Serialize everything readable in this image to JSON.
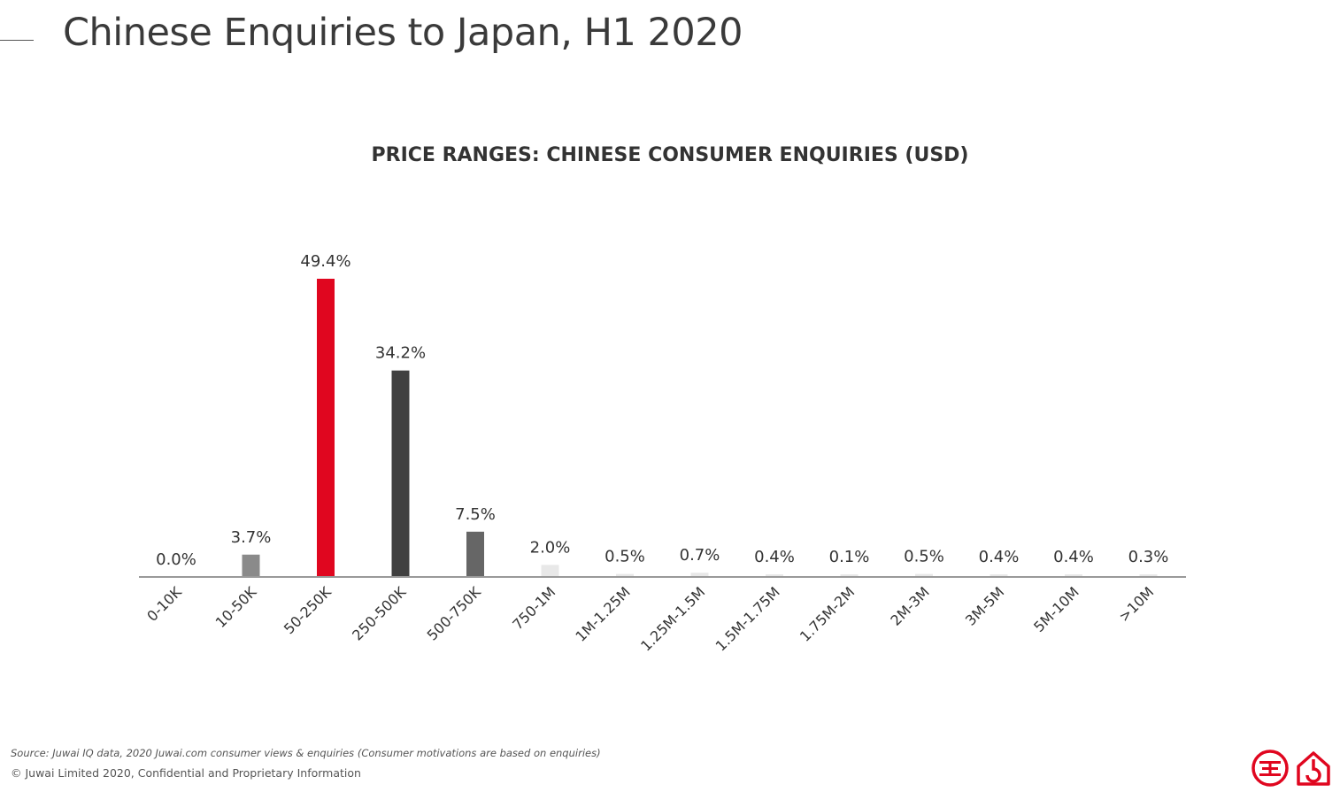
{
  "page": {
    "title": "Chinese Enquiries to Japan, H1 2020",
    "source": "Source: Juwai IQ data, 2020 Juwai.com consumer views & enquiries (Consumer motivations are based on enquiries)",
    "copyright": "© Juwai Limited 2020, Confidential and Proprietary Information"
  },
  "colors": {
    "highlight": "#e0061f",
    "dark": "#404040",
    "mid": "#666666",
    "light": "#8a8a8a",
    "pale": "#e8e8e8",
    "axis": "#999999",
    "text": "#333333"
  },
  "logo": {
    "icons": [
      "juwai-seal-icon",
      "house-icon"
    ]
  },
  "chart_data": {
    "type": "bar",
    "title": "PRICE RANGES: CHINESE CONSUMER ENQUIRIES (USD)",
    "xlabel": "",
    "ylabel": "",
    "ylim": [
      0,
      49.4
    ],
    "grid": false,
    "legend": "none",
    "categories": [
      "0-10K",
      "10-50K",
      "50-250K",
      "250-500K",
      "500-750K",
      "750-1M",
      "1M-1.25M",
      "1.25M-1.5M",
      "1.5M-1.75M",
      "1.75M-2M",
      "2M-3M",
      "3M-5M",
      "5M-10M",
      ">10M"
    ],
    "values": [
      0.0,
      3.7,
      49.4,
      34.2,
      7.5,
      2.0,
      0.5,
      0.7,
      0.4,
      0.1,
      0.5,
      0.4,
      0.4,
      0.3
    ],
    "labels": [
      "0.0%",
      "3.7%",
      "49.4%",
      "34.2%",
      "7.5%",
      "2.0%",
      "0.5%",
      "0.7%",
      "0.4%",
      "0.1%",
      "0.5%",
      "0.4%",
      "0.4%",
      "0.3%"
    ],
    "bar_colors": [
      "#8a8a8a",
      "#8a8a8a",
      "#e0061f",
      "#404040",
      "#666666",
      "#e8e8e8",
      "#e8e8e8",
      "#e8e8e8",
      "#e8e8e8",
      "#e8e8e8",
      "#e8e8e8",
      "#e8e8e8",
      "#e8e8e8",
      "#e8e8e8"
    ]
  }
}
